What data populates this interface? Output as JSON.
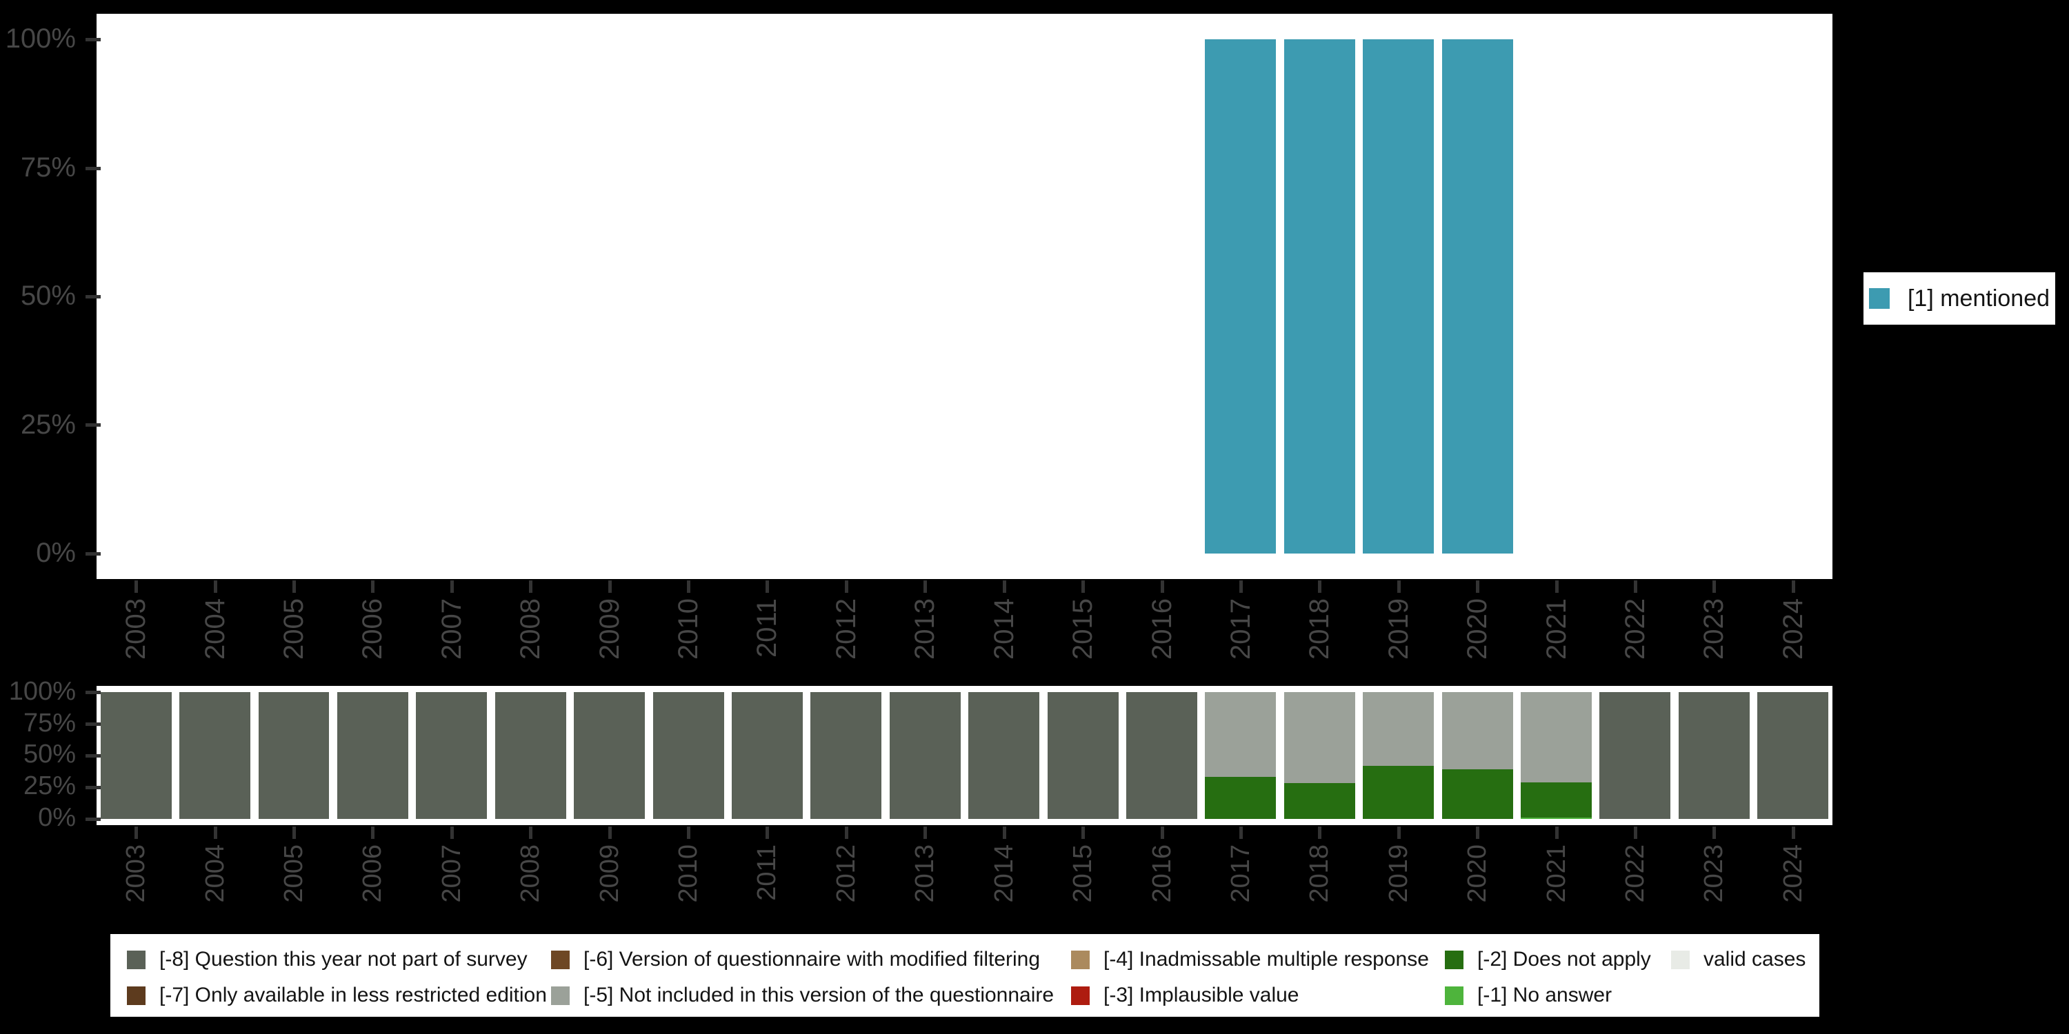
{
  "background_color": "#000000",
  "panel_color": "#ffffff",
  "axis_text_color": "#474747",
  "tick_color": "#333333",
  "years": [
    "2003",
    "2004",
    "2005",
    "2006",
    "2007",
    "2008",
    "2009",
    "2010",
    "2011",
    "2012",
    "2013",
    "2014",
    "2015",
    "2016",
    "2017",
    "2018",
    "2019",
    "2020",
    "2021",
    "2022",
    "2023",
    "2024"
  ],
  "y_tick_labels": [
    "0%",
    "25%",
    "50%",
    "75%",
    "100%"
  ],
  "chart_data": [
    {
      "type": "bar",
      "title": "",
      "xlabel": "",
      "ylabel": "",
      "categories": [
        "2003",
        "2004",
        "2005",
        "2006",
        "2007",
        "2008",
        "2009",
        "2010",
        "2011",
        "2012",
        "2013",
        "2014",
        "2015",
        "2016",
        "2017",
        "2018",
        "2019",
        "2020",
        "2021",
        "2022",
        "2023",
        "2024"
      ],
      "ylim": [
        0,
        100
      ],
      "y_ticks_percent": [
        0,
        25,
        50,
        75,
        100
      ],
      "grid": false,
      "legend_position": "right",
      "series": [
        {
          "name": "[1] mentioned",
          "color": "#3D9BB1",
          "values": [
            0,
            0,
            0,
            0,
            0,
            0,
            0,
            0,
            0,
            0,
            0,
            0,
            0,
            0,
            100,
            100,
            100,
            100,
            0,
            0,
            0,
            0
          ]
        }
      ]
    },
    {
      "type": "bar",
      "stacked": true,
      "title": "",
      "xlabel": "",
      "ylabel": "",
      "categories": [
        "2003",
        "2004",
        "2005",
        "2006",
        "2007",
        "2008",
        "2009",
        "2010",
        "2011",
        "2012",
        "2013",
        "2014",
        "2015",
        "2016",
        "2017",
        "2018",
        "2019",
        "2020",
        "2021",
        "2022",
        "2023",
        "2024"
      ],
      "ylim": [
        0,
        100
      ],
      "y_ticks_percent": [
        0,
        25,
        50,
        75,
        100
      ],
      "grid": false,
      "legend_position": "bottom",
      "series": [
        {
          "name": "[-1] No answer",
          "color": "#4EB43C",
          "values": [
            0,
            0,
            0,
            0,
            0,
            0,
            0,
            0,
            0,
            0,
            0,
            0,
            0,
            0,
            0,
            0,
            0,
            0,
            1,
            0,
            0,
            0
          ]
        },
        {
          "name": "[-2] Does not apply",
          "color": "#266E11",
          "values": [
            0,
            0,
            0,
            0,
            0,
            0,
            0,
            0,
            0,
            0,
            0,
            0,
            0,
            0,
            33,
            28,
            42,
            39,
            28,
            0,
            0,
            0
          ]
        },
        {
          "name": "[-5] Not included in this version of the questionnaire",
          "color": "#9BA199",
          "values": [
            0,
            0,
            0,
            0,
            0,
            0,
            0,
            0,
            0,
            0,
            0,
            0,
            0,
            0,
            67,
            72,
            58,
            61,
            71,
            0,
            0,
            0
          ]
        },
        {
          "name": "[-8] Question this year not part of survey",
          "color": "#5A6157",
          "values": [
            100,
            100,
            100,
            100,
            100,
            100,
            100,
            100,
            100,
            100,
            100,
            100,
            100,
            100,
            0,
            0,
            0,
            0,
            0,
            100,
            100,
            100
          ]
        }
      ]
    }
  ],
  "right_legend": {
    "label": "[1] mentioned",
    "color": "#3D9BB1"
  },
  "bottom_legend": {
    "items": [
      {
        "row": 0,
        "col": 0,
        "label": "[-8] Question this year not part of survey",
        "color": "#5A6157"
      },
      {
        "row": 0,
        "col": 1,
        "label": "[-6] Version of questionnaire with modified filtering",
        "color": "#6E4724"
      },
      {
        "row": 0,
        "col": 2,
        "label": "[-4] Inadmissable multiple response",
        "color": "#AB8A5E"
      },
      {
        "row": 0,
        "col": 3,
        "label": "[-2] Does not apply",
        "color": "#266E11"
      },
      {
        "row": 0,
        "col": 4,
        "label": "valid cases",
        "color": "#E8EBE6"
      },
      {
        "row": 1,
        "col": 0,
        "label": "[-7] Only available in less restricted edition",
        "color": "#5D3B1E"
      },
      {
        "row": 1,
        "col": 1,
        "label": "[-5] Not included in this version of the questionnaire",
        "color": "#9BA199"
      },
      {
        "row": 1,
        "col": 2,
        "label": "[-3] Implausible value",
        "color": "#AE1C10"
      },
      {
        "row": 1,
        "col": 3,
        "label": "[-1] No answer",
        "color": "#4EB43C"
      }
    ]
  }
}
